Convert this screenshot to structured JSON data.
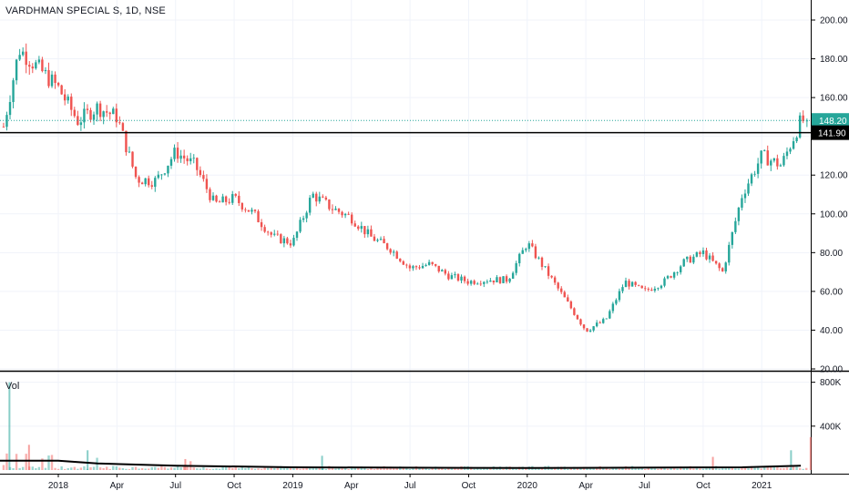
{
  "chart_title": "VARDHMAN SPECIAL S, 1D, NSE",
  "volume_label": "Vol",
  "colors": {
    "up": "#26a69a",
    "down": "#ef5350",
    "grid": "#f0f3fa",
    "axis": "#000000",
    "last_price_line": "#26a69a",
    "horizontal_line": "#000000",
    "volume_ma": "#000000"
  },
  "last_price_tag": "148.20",
  "horizontal_line_tag": "141.90",
  "chart_data": [
    {
      "type": "candlestick",
      "title": "VARDHMAN SPECIAL S, 1D, NSE",
      "y_ticks": [
        "200.00",
        "180.00",
        "160.00",
        "140.00",
        "120.00",
        "100.00",
        "80.00",
        "60.00",
        "40.00",
        "20.00"
      ],
      "ylim": [
        20,
        200
      ],
      "x_ticks": [
        "2018",
        "Apr",
        "Jul",
        "Oct",
        "2019",
        "Apr",
        "Jul",
        "Oct",
        "2020",
        "Apr",
        "Jul",
        "Oct",
        "2021"
      ],
      "last_price": 148.2,
      "horizontal_line": 141.9,
      "price_path": [
        {
          "x": "Oct 2017",
          "close": 135
        },
        {
          "x": "Nov 2017",
          "close": 185
        },
        {
          "x": "Dec 2017",
          "close": 175
        },
        {
          "x": "Jan 2018",
          "close": 165
        },
        {
          "x": "Feb 2018",
          "close": 148
        },
        {
          "x": "Mar 2018",
          "close": 155
        },
        {
          "x": "Apr 2018",
          "close": 150
        },
        {
          "x": "May 2018",
          "close": 118
        },
        {
          "x": "Jun 2018",
          "close": 117
        },
        {
          "x": "Jul 2018",
          "close": 132
        },
        {
          "x": "Aug 2018",
          "close": 125
        },
        {
          "x": "Sep 2018",
          "close": 105
        },
        {
          "x": "Oct 2018",
          "close": 108
        },
        {
          "x": "Nov 2018",
          "close": 100
        },
        {
          "x": "Dec 2018",
          "close": 88
        },
        {
          "x": "Jan 2019",
          "close": 85
        },
        {
          "x": "Feb 2019",
          "close": 110
        },
        {
          "x": "Mar 2019",
          "close": 103
        },
        {
          "x": "Apr 2019",
          "close": 98
        },
        {
          "x": "May 2019",
          "close": 88
        },
        {
          "x": "Jun 2019",
          "close": 82
        },
        {
          "x": "Jul 2019",
          "close": 72
        },
        {
          "x": "Aug 2019",
          "close": 74
        },
        {
          "x": "Sep 2019",
          "close": 68
        },
        {
          "x": "Oct 2019",
          "close": 65
        },
        {
          "x": "Nov 2019",
          "close": 66
        },
        {
          "x": "Dec 2019",
          "close": 66
        },
        {
          "x": "Jan 2020",
          "close": 85
        },
        {
          "x": "Feb 2020",
          "close": 70
        },
        {
          "x": "Mar 2020",
          "close": 55
        },
        {
          "x": "Apr 2020",
          "close": 40
        },
        {
          "x": "May 2020",
          "close": 45
        },
        {
          "x": "Jun 2020",
          "close": 65
        },
        {
          "x": "Jul 2020",
          "close": 60
        },
        {
          "x": "Aug 2020",
          "close": 65
        },
        {
          "x": "Sep 2020",
          "close": 75
        },
        {
          "x": "Oct 2020",
          "close": 80
        },
        {
          "x": "Nov 2020",
          "close": 70
        },
        {
          "x": "Dec 2020",
          "close": 110
        },
        {
          "x": "Jan 2021",
          "close": 130
        },
        {
          "x": "Feb 2021",
          "close": 125
        },
        {
          "x": "Mar 2021",
          "close": 148
        }
      ]
    },
    {
      "type": "bar",
      "title": "Vol",
      "y_ticks": [
        "800K",
        "400K"
      ],
      "ylim": [
        0,
        880000
      ],
      "spikes": [
        {
          "x": "Oct 2017",
          "value": 800000
        },
        {
          "x": "Nov 2017",
          "value": 230000
        },
        {
          "x": "Feb 2018",
          "value": 180000
        },
        {
          "x": "Jul 2018",
          "value": 100000
        },
        {
          "x": "Feb 2019",
          "value": 130000
        },
        {
          "x": "Oct 2020",
          "value": 120000
        },
        {
          "x": "Feb 2021",
          "value": 180000
        },
        {
          "x": "Mar 2021",
          "value": 300000
        }
      ],
      "moving_average": [
        {
          "x": "Oct 2017",
          "value": 85000
        },
        {
          "x": "Jan 2018",
          "value": 85000
        },
        {
          "x": "Mar 2018",
          "value": 60000
        },
        {
          "x": "Jul 2018",
          "value": 40000
        },
        {
          "x": "Jan 2019",
          "value": 25000
        },
        {
          "x": "Jan 2020",
          "value": 18000
        },
        {
          "x": "Dec 2020",
          "value": 25000
        },
        {
          "x": "Mar 2021",
          "value": 40000
        }
      ]
    }
  ]
}
